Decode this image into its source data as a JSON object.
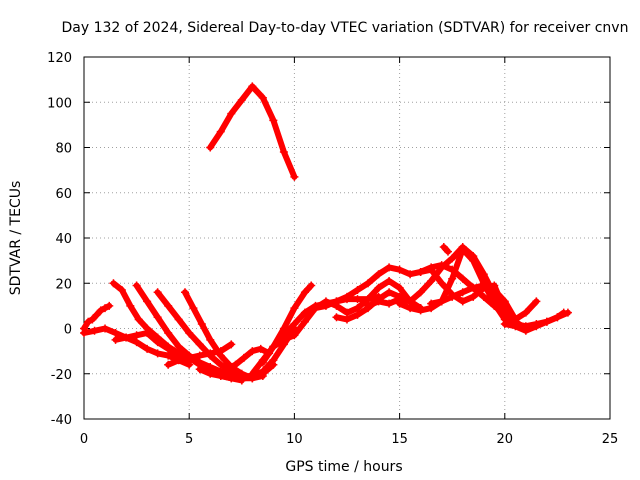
{
  "chart_data": {
    "type": "scatter",
    "title": "Day 132 of 2024, Sidereal Day-to-day VTEC variation (SDTVAR) for receiver cnvn",
    "xlabel": "GPS time / hours",
    "ylabel": "SDTVAR / TECUs",
    "xlim": [
      0,
      25
    ],
    "ylim": [
      -40,
      120
    ],
    "xticks": [
      0,
      5,
      10,
      15,
      20,
      25
    ],
    "yticks": [
      -40,
      -20,
      0,
      20,
      40,
      60,
      80,
      100,
      120
    ],
    "grid": true,
    "marker": "+",
    "color": "#ff0000",
    "series": [
      {
        "name": "s1",
        "x": [
          0.0,
          0.2,
          0.4,
          0.6,
          0.8,
          1.0,
          1.2
        ],
        "y": [
          0,
          3,
          4,
          6,
          8,
          9,
          10
        ]
      },
      {
        "name": "s2",
        "x": [
          0.0,
          0.5,
          1.0,
          1.5,
          2.0,
          2.5,
          3.0,
          3.5,
          4.0,
          4.5,
          5.0
        ],
        "y": [
          -2,
          -1,
          0,
          -2,
          -4,
          -6,
          -9,
          -11,
          -12,
          -14,
          -16
        ]
      },
      {
        "name": "s3",
        "x": [
          1.4,
          1.8,
          2.2,
          2.6,
          3.0,
          3.5,
          4.0,
          4.5,
          5.0,
          5.5,
          6.0,
          6.5,
          7.0,
          7.5
        ],
        "y": [
          20,
          17,
          10,
          4,
          0,
          -4,
          -8,
          -11,
          -13,
          -16,
          -19,
          -21,
          -22,
          -23
        ]
      },
      {
        "name": "s4",
        "x": [
          2.5,
          3.0,
          3.5,
          4.0,
          4.5,
          5.0,
          5.5,
          6.0,
          6.5,
          7.0,
          7.5,
          8.0
        ],
        "y": [
          19,
          12,
          5,
          -2,
          -8,
          -12,
          -15,
          -17,
          -19,
          -21,
          -22,
          -22
        ]
      },
      {
        "name": "s5",
        "x": [
          3.5,
          4.0,
          4.5,
          5.0,
          5.5,
          6.0,
          6.5,
          7.0,
          7.5,
          8.0,
          8.5
        ],
        "y": [
          16,
          10,
          4,
          -2,
          -7,
          -12,
          -16,
          -19,
          -21,
          -22,
          -21
        ]
      },
      {
        "name": "s6",
        "x": [
          4.8,
          5.2,
          5.6,
          6.0,
          6.5,
          7.0,
          7.5,
          8.0,
          8.5,
          9.0
        ],
        "y": [
          16,
          9,
          2,
          -5,
          -12,
          -17,
          -20,
          -22,
          -20,
          -16
        ]
      },
      {
        "name": "s7",
        "x": [
          1.5,
          2.0,
          2.5,
          3.0,
          3.5,
          4.0,
          4.5,
          5.0
        ],
        "y": [
          -5,
          -4,
          -3,
          -2,
          -6,
          -9,
          -12,
          -14
        ]
      },
      {
        "name": "s8",
        "x": [
          4.0,
          4.5,
          5.0,
          5.5,
          6.0,
          6.5,
          7.0
        ],
        "y": [
          -16,
          -14,
          -13,
          -12,
          -11,
          -10,
          -7
        ]
      },
      {
        "name": "s9",
        "x": [
          5.5,
          6.0,
          6.5,
          7.0,
          7.5,
          8.0,
          8.5,
          9.0,
          9.5,
          10.0
        ],
        "y": [
          -18,
          -20,
          -21,
          -22,
          -22,
          -21,
          -19,
          -14,
          -7,
          0
        ]
      },
      {
        "name": "s10",
        "x": [
          6.8,
          7.2,
          7.6,
          8.0,
          8.4,
          8.8
        ],
        "y": [
          -18,
          -16,
          -13,
          -10,
          -9,
          -11
        ]
      },
      {
        "name": "s11",
        "x": [
          6.0,
          6.5,
          7.0,
          7.5,
          8.0,
          8.5,
          9.0,
          9.5,
          10.0
        ],
        "y": [
          80,
          87,
          95,
          101,
          107,
          102,
          92,
          78,
          67
        ]
      },
      {
        "name": "s12",
        "x": [
          8.0,
          8.5,
          9.0,
          9.5,
          10.0,
          10.5,
          11.0,
          11.5,
          12.0,
          12.5,
          13.0,
          13.5,
          14.0
        ],
        "y": [
          -20,
          -14,
          -8,
          -3,
          2,
          7,
          10,
          11,
          12,
          13,
          13,
          13,
          14
        ]
      },
      {
        "name": "s13",
        "x": [
          8.5,
          9.0,
          9.5,
          10.0,
          10.5,
          10.8
        ],
        "y": [
          -15,
          -8,
          0,
          9,
          16,
          19
        ]
      },
      {
        "name": "s14",
        "x": [
          9.0,
          9.5,
          10.0,
          10.5,
          11.0,
          11.5,
          12.0,
          12.5,
          13.0,
          13.5,
          14.0,
          14.5,
          15.0,
          15.5,
          16.0
        ],
        "y": [
          -8,
          -5,
          -3,
          3,
          9,
          12,
          10,
          7,
          9,
          13,
          18,
          21,
          18,
          12,
          9
        ]
      },
      {
        "name": "s15",
        "x": [
          11.0,
          11.5,
          12.0,
          12.5,
          13.0,
          13.5,
          14.0,
          14.5,
          15.0,
          15.5,
          16.0,
          16.5,
          17.0,
          17.5,
          18.0,
          18.5,
          19.0,
          19.5,
          20.0
        ],
        "y": [
          9,
          10,
          12,
          14,
          17,
          20,
          24,
          27,
          26,
          24,
          25,
          26,
          20,
          15,
          12,
          14,
          18,
          19,
          8
        ]
      },
      {
        "name": "s16",
        "x": [
          12.0,
          12.5,
          13.0,
          13.5,
          14.0,
          14.5,
          15.0,
          15.5,
          16.0
        ],
        "y": [
          5,
          4,
          6,
          9,
          13,
          16,
          14,
          12,
          9
        ]
      },
      {
        "name": "s17",
        "x": [
          15.0,
          15.5,
          16.0,
          16.5,
          17.0,
          17.5,
          18.0,
          18.5,
          19.0,
          19.5,
          20.0,
          20.5,
          21.0,
          21.5,
          22.0,
          22.5,
          23.0
        ],
        "y": [
          11,
          9,
          8,
          9,
          12,
          22,
          35,
          30,
          20,
          11,
          4,
          2,
          1,
          2,
          3,
          5,
          7
        ]
      },
      {
        "name": "s18",
        "x": [
          13.5,
          14.0,
          14.5,
          15.0,
          15.5,
          16.0,
          16.5,
          17.0,
          17.5,
          18.0,
          18.5,
          19.0,
          19.5,
          20.0,
          20.5,
          21.0
        ],
        "y": [
          10,
          12,
          11,
          13,
          12,
          16,
          21,
          27,
          31,
          36,
          32,
          24,
          15,
          8,
          3,
          0
        ]
      },
      {
        "name": "s19",
        "x": [
          16.0,
          16.5,
          17.0,
          17.5,
          18.0,
          18.5,
          19.0,
          19.5,
          20.0,
          20.5,
          21.0,
          21.5
        ],
        "y": [
          25,
          27,
          28,
          26,
          22,
          18,
          14,
          10,
          6,
          4,
          7,
          12
        ]
      },
      {
        "name": "s20",
        "x": [
          16.5,
          17.0,
          17.5,
          18.0,
          18.5,
          19.0,
          19.5,
          20.0,
          20.5
        ],
        "y": [
          11,
          12,
          14,
          16,
          18,
          19,
          17,
          12,
          4
        ]
      },
      {
        "name": "s21",
        "x": [
          20.0,
          20.5,
          21.0,
          21.5,
          22.0,
          22.5,
          22.8
        ],
        "y": [
          2,
          1,
          -1,
          1,
          3,
          5,
          7
        ]
      },
      {
        "name": "s22",
        "x": [
          17.1,
          17.3
        ],
        "y": [
          36,
          34
        ]
      }
    ]
  }
}
